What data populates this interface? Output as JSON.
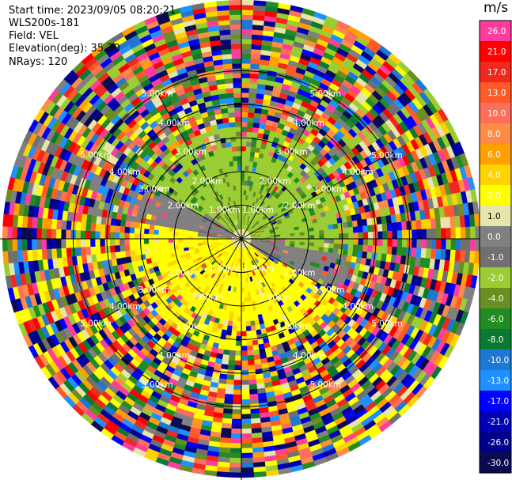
{
  "header": {
    "start_time": "Start time: 2023/09/05 08:20:21",
    "instrument": "WLS200s-181",
    "field": "Field: VEL",
    "elevation": "Elevation(deg): 35.30",
    "nrays": "NRays: 120"
  },
  "colorbar": {
    "unit": "m/s",
    "levels": [
      {
        "label": "26.0",
        "color": "#ff3c9c"
      },
      {
        "label": "21.0",
        "color": "#ff0000"
      },
      {
        "label": "17.0",
        "color": "#f0281e"
      },
      {
        "label": "13.0",
        "color": "#ff5a28"
      },
      {
        "label": "10.0",
        "color": "#ff6e5a"
      },
      {
        "label": "8.0",
        "color": "#ff8c46"
      },
      {
        "label": "6.0",
        "color": "#ffa000"
      },
      {
        "label": "4.0",
        "color": "#ffd200"
      },
      {
        "label": "2.0",
        "color": "#ffff00"
      },
      {
        "label": "1.0",
        "color": "#e6e6aa"
      },
      {
        "label": "0.0",
        "color": "#808080"
      },
      {
        "label": "-1.0",
        "color": "#707070"
      },
      {
        "label": "-2.0",
        "color": "#9acd32"
      },
      {
        "label": "-4.0",
        "color": "#6b8e23"
      },
      {
        "label": "-6.0",
        "color": "#228b22"
      },
      {
        "label": "-8.0",
        "color": "#0a7a32"
      },
      {
        "label": "-10.0",
        "color": "#1e78d2"
      },
      {
        "label": "-13.0",
        "color": "#1e90ff"
      },
      {
        "label": "-17.0",
        "color": "#0000ff"
      },
      {
        "label": "-21.0",
        "color": "#0000b4"
      },
      {
        "label": "-26.0",
        "color": "#00008b"
      },
      {
        "label": "-30.0",
        "color": "#0a0a50"
      }
    ]
  },
  "chart_data": {
    "type": "heatmap",
    "projection": "polar PPI",
    "field": "VEL",
    "units": "m/s",
    "elevation_deg": 35.3,
    "nrays": 120,
    "clim": [
      -30.0,
      26.0
    ],
    "range_rings_km": [
      1.0,
      2.0,
      3.0,
      4.0,
      5.0
    ],
    "ring_labels": [
      "1.00km",
      "2.00km",
      "3.00km",
      "4.00km",
      "5.00km"
    ],
    "colors": {
      "ring_and_spoke": "#000000",
      "label_text": "#ffffff"
    }
  }
}
